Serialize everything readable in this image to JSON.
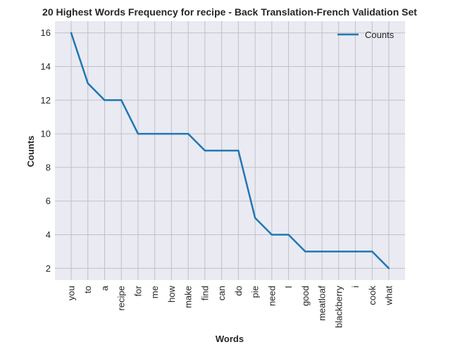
{
  "chart_data": {
    "type": "line",
    "title": "20 Highest Words Frequency for recipe - Back Translation-French Validation Set",
    "xlabel": "Words",
    "ylabel": "Counts",
    "categories": [
      "you",
      "to",
      "a",
      "recipe",
      "for",
      "me",
      "how",
      "make",
      "find",
      "can",
      "do",
      "pie",
      "need",
      "I",
      "good",
      "meatloaf",
      "blackberry",
      "i",
      "cook",
      "what"
    ],
    "series": [
      {
        "name": "Counts",
        "values": [
          16,
          13,
          12,
          12,
          10,
          10,
          10,
          10,
          9,
          9,
          9,
          5,
          4,
          4,
          3,
          3,
          3,
          3,
          3,
          2
        ]
      }
    ],
    "yticks": [
      2,
      4,
      6,
      8,
      10,
      12,
      14,
      16
    ],
    "ylim": [
      1.3,
      16.7
    ],
    "grid": true,
    "legend_position": "top-right",
    "colors": {
      "line": "#1f77b4",
      "plot_background": "#eaeaf2",
      "grid": "#c0c0c8",
      "text": "#262626"
    }
  }
}
